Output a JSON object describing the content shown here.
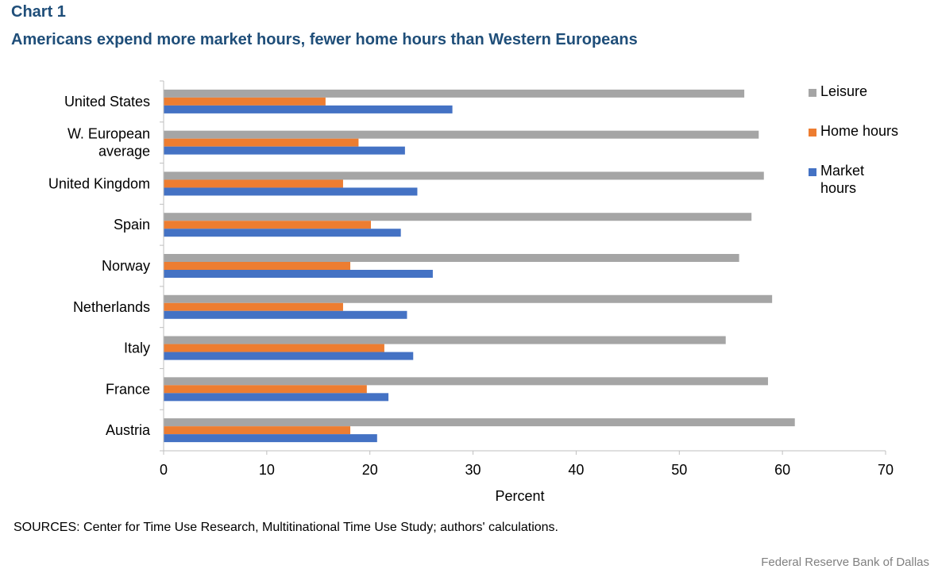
{
  "header": {
    "label": "Chart 1",
    "title": "Americans expend more market hours, fewer home hours than Western Europeans"
  },
  "footer": {
    "sources": "SOURCES: Center for Time Use Research, Multitinational Time Use Study; authors' calculations.",
    "credit": "Federal Reserve Bank of Dallas"
  },
  "chart_data": {
    "type": "bar",
    "orientation": "horizontal",
    "categories": [
      "United States",
      "W. European average",
      "United Kingdom",
      "Spain",
      "Norway",
      "Netherlands",
      "Italy",
      "France",
      "Austria"
    ],
    "category_lines": [
      [
        "United States"
      ],
      [
        "W. European",
        "average"
      ],
      [
        "United Kingdom"
      ],
      [
        "Spain"
      ],
      [
        "Norway"
      ],
      [
        "Netherlands"
      ],
      [
        "Italy"
      ],
      [
        "France"
      ],
      [
        "Austria"
      ]
    ],
    "series": [
      {
        "name": "Leisure",
        "color": "#a5a5a5",
        "values": [
          56.3,
          57.7,
          58.2,
          57.0,
          55.8,
          59.0,
          54.5,
          58.6,
          61.2
        ]
      },
      {
        "name": "Home hours",
        "color": "#ed7d31",
        "values": [
          15.7,
          18.9,
          17.4,
          20.1,
          18.1,
          17.4,
          21.4,
          19.7,
          18.1
        ]
      },
      {
        "name": "Market hours",
        "color": "#4472c4",
        "values": [
          28.0,
          23.4,
          24.6,
          23.0,
          26.1,
          23.6,
          24.2,
          21.8,
          20.7
        ]
      }
    ],
    "xlabel": "Percent",
    "ylabel": "",
    "xlim": [
      0,
      70
    ],
    "xticks": [
      0,
      10,
      20,
      30,
      40,
      50,
      60,
      70
    ],
    "grid": false,
    "legend_position": "right"
  }
}
